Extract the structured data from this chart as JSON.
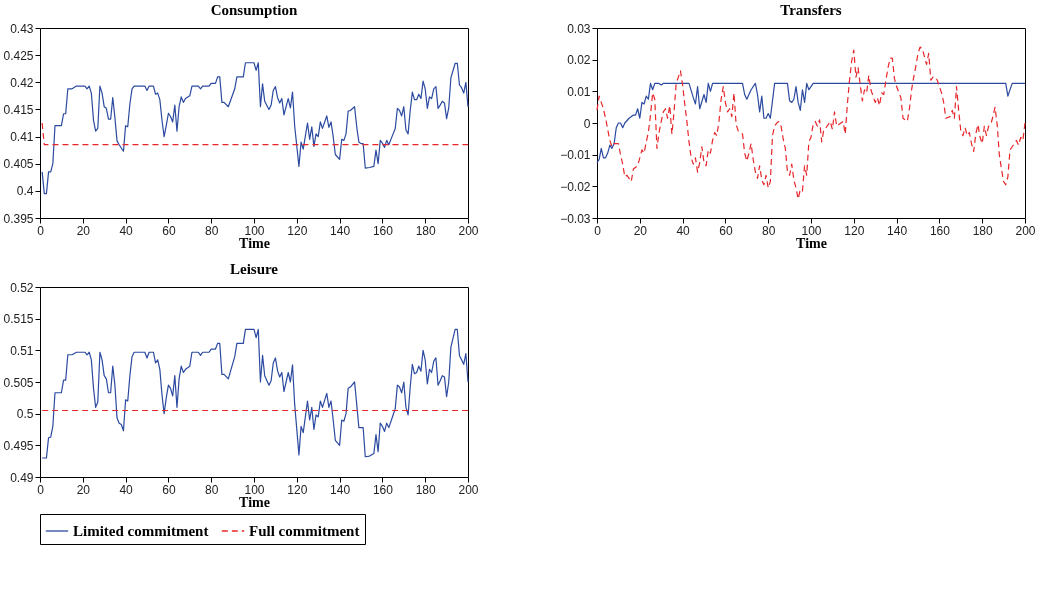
{
  "chart_data": [
    {
      "type": "line",
      "title": "Consumption",
      "xlabel": "Time",
      "xlim": [
        0,
        200
      ],
      "xticks": [
        0,
        20,
        40,
        60,
        80,
        100,
        120,
        140,
        160,
        180,
        200
      ],
      "ylim": [
        0.395,
        0.43
      ],
      "yticks": [
        0.395,
        0.4,
        0.405,
        0.41,
        0.415,
        0.42,
        0.425,
        0.43
      ],
      "grid": false,
      "legend": "bottom",
      "series": [
        {
          "name": "Limited commitment",
          "color": "#2b4aa0",
          "line_style": "solid",
          "x": [
            1,
            2,
            3,
            4,
            5,
            6,
            7,
            10,
            11,
            12,
            13,
            15,
            17,
            21,
            22,
            23,
            24,
            25,
            26,
            27,
            28,
            29,
            30,
            31,
            32,
            33,
            34,
            35,
            36,
            37,
            39,
            40,
            41,
            42,
            43,
            44,
            49,
            50,
            51,
            53,
            54,
            55,
            56,
            57,
            58,
            59,
            60,
            61,
            62,
            63,
            64,
            65,
            66,
            67,
            68,
            70,
            71,
            74,
            75,
            76,
            79,
            80,
            82,
            83,
            84,
            85,
            86,
            88,
            91,
            92,
            95,
            96,
            100,
            101,
            102,
            103,
            104,
            105,
            107,
            108,
            109,
            110,
            111,
            112,
            113,
            114,
            115,
            116,
            117,
            118,
            119,
            121,
            122,
            123,
            125,
            126,
            127,
            128,
            129,
            130,
            131,
            132,
            134,
            135,
            136,
            137,
            138,
            140,
            141,
            142,
            143,
            144,
            145,
            147,
            148,
            149,
            150,
            151,
            152,
            154,
            156,
            157,
            158,
            159,
            160,
            161,
            162,
            163,
            165,
            166,
            167,
            168,
            169,
            170,
            171,
            172,
            173,
            174,
            175,
            176,
            177,
            178,
            179,
            180,
            181,
            182,
            183,
            184,
            185,
            186,
            187,
            188,
            189,
            190,
            191,
            192,
            194,
            195,
            196,
            197,
            198,
            199,
            200
          ],
          "values": [
            0.4035,
            0.3995,
            0.3995,
            0.4035,
            0.4035,
            0.405,
            0.412,
            0.412,
            0.4142,
            0.4142,
            0.4188,
            0.4188,
            0.4193,
            0.4193,
            0.4188,
            0.4193,
            0.418,
            0.413,
            0.411,
            0.4115,
            0.4193,
            0.418,
            0.4155,
            0.4152,
            0.4132,
            0.4132,
            0.4172,
            0.4135,
            0.4092,
            0.4085,
            0.4073,
            0.412,
            0.4118,
            0.416,
            0.4188,
            0.4193,
            0.4193,
            0.4185,
            0.4193,
            0.4193,
            0.4178,
            0.418,
            0.4168,
            0.413,
            0.41,
            0.412,
            0.4143,
            0.4137,
            0.4127,
            0.4158,
            0.411,
            0.4155,
            0.4173,
            0.4163,
            0.417,
            0.4175,
            0.4193,
            0.4193,
            0.4188,
            0.4193,
            0.4193,
            0.4198,
            0.4198,
            0.421,
            0.421,
            0.4163,
            0.4163,
            0.4155,
            0.4188,
            0.421,
            0.421,
            0.4236,
            0.4236,
            0.4222,
            0.4236,
            0.4155,
            0.4197,
            0.4165,
            0.415,
            0.4158,
            0.4185,
            0.4192,
            0.4172,
            0.4162,
            0.417,
            0.414,
            0.4155,
            0.417,
            0.4153,
            0.4182,
            0.412,
            0.4045,
            0.409,
            0.4077,
            0.4125,
            0.4095,
            0.4118,
            0.4082,
            0.4105,
            0.41,
            0.4127,
            0.4115,
            0.4138,
            0.4117,
            0.4127,
            0.41,
            0.4067,
            0.4058,
            0.4095,
            0.4093,
            0.4105,
            0.4147,
            0.4148,
            0.4155,
            0.4118,
            0.409,
            0.4087,
            0.4087,
            0.4042,
            0.4043,
            0.4045,
            0.4075,
            0.405,
            0.4093,
            0.4088,
            0.408,
            0.4093,
            0.4085,
            0.4105,
            0.4115,
            0.4152,
            0.4148,
            0.4138,
            0.4155,
            0.4112,
            0.4105,
            0.4148,
            0.4182,
            0.4168,
            0.4168,
            0.4178,
            0.417,
            0.4202,
            0.4188,
            0.4152,
            0.4173,
            0.417,
            0.4188,
            0.4192,
            0.4152,
            0.4158,
            0.4165,
            0.4162,
            0.4133,
            0.4153,
            0.4208,
            0.4235,
            0.4235,
            0.4195,
            0.419,
            0.418,
            0.42,
            0.4155
          ]
        },
        {
          "name": "Full commitment",
          "color": "#e8262a",
          "line_style": "dashed",
          "x": [
            1,
            2,
            200
          ],
          "values": [
            0.4125,
            0.4085,
            0.4085
          ]
        }
      ]
    },
    {
      "type": "line",
      "title": "Transfers",
      "xlabel": "Time",
      "xlim": [
        0,
        200
      ],
      "xticks": [
        0,
        20,
        40,
        60,
        80,
        100,
        120,
        140,
        160,
        180,
        200
      ],
      "ylim": [
        -0.03,
        0.03
      ],
      "yticks": [
        -0.03,
        -0.02,
        -0.01,
        0,
        0.01,
        0.02,
        0.03
      ],
      "grid": false,
      "legend": "bottom",
      "series": [
        {
          "name": "Limited commitment",
          "color": "#2b4aa0",
          "line_style": "solid",
          "x": [
            0,
            1,
            2,
            3,
            4,
            5,
            6,
            7,
            8,
            9,
            10,
            11,
            12,
            13,
            15,
            17,
            18,
            19,
            20,
            21,
            22,
            23,
            24,
            25,
            26,
            27,
            29,
            30,
            31,
            43,
            45,
            46,
            47,
            48,
            50,
            51,
            52,
            53,
            54,
            68,
            69,
            70,
            72,
            74,
            75,
            76,
            77,
            78,
            79,
            80,
            81,
            83,
            89,
            90,
            91,
            92,
            93,
            94,
            95,
            96,
            97,
            98,
            99,
            100,
            101,
            191,
            192,
            194,
            200
          ],
          "values": [
            -0.0125,
            -0.0115,
            -0.008,
            -0.011,
            -0.011,
            -0.0095,
            -0.007,
            -0.008,
            -0.0065,
            -0.0015,
            0,
            0,
            -0.0015,
            0,
            0.0015,
            0.0025,
            0.0025,
            0.0045,
            0.0015,
            0.0065,
            0.006,
            0.0085,
            0.0075,
            0.0125,
            0.0105,
            0.0125,
            0.0125,
            0.012,
            0.0125,
            0.0125,
            0.008,
            0.006,
            0.0115,
            0.0045,
            0.009,
            0.0065,
            0.0125,
            0.01,
            0.0125,
            0.0125,
            0.009,
            0.0075,
            0.0105,
            0.0125,
            0.009,
            0.0035,
            0.0085,
            0.0015,
            0.0015,
            0.003,
            0.0015,
            0.0125,
            0.0125,
            0.007,
            0.0065,
            0.0075,
            0.0115,
            0.0065,
            0.004,
            0.0105,
            0.0065,
            0.0125,
            0.0105,
            0.0115,
            0.0125,
            0.0125,
            0.0085,
            0.0125,
            0.0125
          ]
        },
        {
          "name": "Full commitment",
          "color": "#e8262a",
          "line_style": "dashed",
          "x": [
            0,
            1,
            3,
            4,
            5,
            6,
            7,
            8,
            10,
            11,
            12,
            13,
            14,
            16,
            17,
            19,
            20,
            21,
            22,
            23,
            24,
            25,
            26,
            27,
            28,
            29,
            30,
            31,
            32,
            33,
            34,
            35,
            36,
            37,
            38,
            39,
            40,
            41,
            42,
            43,
            44,
            45,
            46,
            47,
            48,
            49,
            50,
            51,
            52,
            53,
            54,
            55,
            56,
            57,
            58,
            59,
            60,
            61,
            62,
            63,
            64,
            65,
            66,
            67,
            68,
            69,
            70,
            71,
            72,
            73,
            74,
            75,
            76,
            77,
            78,
            79,
            80,
            81,
            82,
            83,
            84,
            85,
            86,
            87,
            88,
            89,
            90,
            91,
            92,
            93,
            94,
            95,
            96,
            97,
            98,
            99,
            100,
            101,
            102,
            103,
            104,
            105,
            106,
            107,
            108,
            109,
            110,
            111,
            112,
            113,
            114,
            115,
            116,
            117,
            118,
            119,
            120,
            121,
            122,
            123,
            124,
            125,
            126,
            127,
            128,
            129,
            130,
            131,
            132,
            133,
            134,
            135,
            136,
            137,
            138,
            139,
            140,
            142,
            143,
            145,
            146,
            147,
            148,
            149,
            150,
            151,
            152,
            154,
            155,
            156,
            157,
            158,
            159,
            161,
            162,
            163,
            165,
            166,
            167,
            168,
            169,
            170,
            171,
            172,
            173,
            174,
            175,
            176,
            177,
            178,
            179,
            180,
            181,
            182,
            183,
            184,
            185,
            186,
            187,
            188,
            189,
            190,
            191,
            192,
            193,
            194,
            195,
            196,
            197,
            198,
            199,
            200
          ],
          "values": [
            0.004,
            0.0085,
            0.0045,
            0.0015,
            -0.002,
            -0.0055,
            -0.0075,
            -0.0065,
            -0.0065,
            -0.01,
            -0.013,
            -0.017,
            -0.0165,
            -0.0185,
            -0.0145,
            -0.0135,
            -0.011,
            -0.0085,
            -0.0095,
            -0.006,
            -0.003,
            0.0025,
            0.0095,
            0.0075,
            -0.008,
            -0.003,
            0.0005,
            0.0035,
            0.0045,
            0.0015,
            0.0055,
            -0.0035,
            0.0035,
            0.0125,
            0.0145,
            0.0165,
            0.012,
            0.006,
            0.0005,
            -0.006,
            -0.011,
            -0.013,
            -0.011,
            -0.0155,
            -0.0125,
            -0.0075,
            -0.0125,
            -0.0135,
            -0.0085,
            -0.0095,
            -0.0055,
            -0.003,
            -0.004,
            0.0005,
            0.0075,
            0.0115,
            0.0065,
            0.0035,
            0.0045,
            0.002,
            0.0095,
            -0.0005,
            -0.0025,
            -0.003,
            -0.0035,
            -0.0095,
            -0.012,
            -0.0095,
            -0.0065,
            -0.0115,
            -0.0155,
            -0.0175,
            -0.0135,
            -0.018,
            -0.0195,
            -0.0165,
            -0.0205,
            -0.0185,
            -0.004,
            -0.001,
            0,
            0.0005,
            -0.001,
            -0.005,
            -0.008,
            -0.0155,
            -0.0165,
            -0.013,
            -0.018,
            -0.0205,
            -0.024,
            -0.021,
            -0.0215,
            -0.0135,
            -0.0165,
            -0.006,
            -0.0045,
            -0.0005,
            0.0005,
            -0.001,
            0.001,
            -0.006,
            -0.002,
            -0.0015,
            -0.0005,
            0.0005,
            -0.002,
            0.0035,
            -0.001,
            -0.0005,
            0,
            0.0005,
            -0.0035,
            0.006,
            0.0135,
            0.0195,
            0.023,
            0.0145,
            0.0175,
            0.012,
            0.007,
            0.0105,
            0.0095,
            0.015,
            0.0105,
            0.0085,
            0.0065,
            0.008,
            0.0055,
            0.0095,
            0.009,
            0.0135,
            0.0175,
            0.0205,
            0.0205,
            0.014,
            0.0115,
            0.008,
            0.0015,
            0.0005,
            0.0045,
            0.0105,
            0.0145,
            0.018,
            0.022,
            0.024,
            0.0235,
            0.0185,
            0.022,
            0.0135,
            0.0145,
            0.0145,
            0.0135,
            0.0095,
            0.0065,
            0.0015,
            0.002,
            0.004,
            0.0015,
            0.0115,
            0.004,
            -0.0025,
            -0.004,
            -0.0015,
            -0.004,
            -0.003,
            -0.0065,
            -0.009,
            -0.0035,
            -0.0005,
            -0.0045,
            -0.0065,
            -0.001,
            -0.004,
            -0.001,
            -0.0005,
            0.002,
            0.005,
            -0.0005,
            -0.01,
            -0.0145,
            -0.0185,
            -0.0195,
            -0.017,
            -0.0085,
            -0.0075,
            -0.0065,
            -0.0055,
            -0.007,
            -0.0045,
            -0.0055,
            0
          ]
        }
      ]
    },
    {
      "type": "line",
      "title": "Leisure",
      "xlabel": "Time",
      "xlim": [
        0,
        200
      ],
      "xticks": [
        0,
        20,
        40,
        60,
        80,
        100,
        120,
        140,
        160,
        180,
        200
      ],
      "ylim": [
        0.49,
        0.52
      ],
      "yticks": [
        0.49,
        0.495,
        0.5,
        0.505,
        0.51,
        0.515,
        0.52
      ],
      "grid": false,
      "legend": "bottom",
      "series": [
        {
          "name": "Limited commitment",
          "color": "#2b4aa0",
          "line_style": "solid",
          "x": [
            1,
            3,
            4,
            5,
            6,
            7,
            10,
            11,
            12,
            13,
            15,
            17,
            21,
            22,
            23,
            24,
            25,
            26,
            27,
            28,
            29,
            30,
            31,
            32,
            33,
            34,
            35,
            36,
            37,
            38,
            39,
            40,
            41,
            42,
            43,
            44,
            49,
            50,
            51,
            53,
            54,
            55,
            56,
            57,
            58,
            59,
            60,
            61,
            62,
            63,
            64,
            65,
            66,
            67,
            68,
            70,
            71,
            74,
            75,
            76,
            79,
            80,
            82,
            83,
            84,
            85,
            86,
            88,
            91,
            92,
            95,
            96,
            100,
            101,
            102,
            103,
            104,
            105,
            107,
            108,
            109,
            110,
            111,
            112,
            113,
            114,
            115,
            116,
            117,
            118,
            119,
            121,
            122,
            123,
            125,
            126,
            127,
            128,
            129,
            130,
            131,
            132,
            134,
            135,
            136,
            137,
            138,
            140,
            141,
            142,
            143,
            144,
            145,
            147,
            148,
            149,
            151,
            152,
            154,
            156,
            157,
            158,
            159,
            160,
            161,
            162,
            163,
            165,
            166,
            167,
            168,
            169,
            170,
            171,
            172,
            173,
            174,
            175,
            176,
            177,
            178,
            179,
            180,
            181,
            182,
            183,
            184,
            185,
            186,
            187,
            188,
            189,
            190,
            191,
            192,
            194,
            195,
            196,
            197,
            198,
            199,
            200
          ],
          "values": [
            0.493,
            0.493,
            0.4962,
            0.4963,
            0.498,
            0.5033,
            0.5033,
            0.5053,
            0.5053,
            0.5093,
            0.5093,
            0.5097,
            0.5097,
            0.5093,
            0.5097,
            0.5085,
            0.504,
            0.501,
            0.5018,
            0.5097,
            0.5085,
            0.506,
            0.5055,
            0.5033,
            0.5033,
            0.5075,
            0.5045,
            0.4993,
            0.4985,
            0.4983,
            0.4973,
            0.5022,
            0.502,
            0.506,
            0.509,
            0.5097,
            0.5097,
            0.5088,
            0.5097,
            0.5097,
            0.508,
            0.5085,
            0.507,
            0.503,
            0.5,
            0.5025,
            0.5045,
            0.504,
            0.5028,
            0.506,
            0.501,
            0.5055,
            0.5075,
            0.5065,
            0.507,
            0.5075,
            0.5097,
            0.5097,
            0.5092,
            0.5097,
            0.5097,
            0.5102,
            0.5102,
            0.5111,
            0.5111,
            0.5062,
            0.5062,
            0.5055,
            0.509,
            0.5111,
            0.5111,
            0.5133,
            0.5133,
            0.512,
            0.5133,
            0.505,
            0.5092,
            0.506,
            0.5045,
            0.5052,
            0.508,
            0.5088,
            0.5068,
            0.5058,
            0.5065,
            0.5035,
            0.505,
            0.5065,
            0.505,
            0.5077,
            0.5015,
            0.4935,
            0.498,
            0.497,
            0.502,
            0.499,
            0.501,
            0.4975,
            0.4998,
            0.4995,
            0.502,
            0.501,
            0.5032,
            0.501,
            0.502,
            0.499,
            0.4958,
            0.495,
            0.499,
            0.4988,
            0.5,
            0.504,
            0.5042,
            0.505,
            0.5015,
            0.4978,
            0.4978,
            0.4932,
            0.4933,
            0.4937,
            0.4967,
            0.494,
            0.4985,
            0.498,
            0.4972,
            0.4985,
            0.4978,
            0.4998,
            0.5008,
            0.5045,
            0.5042,
            0.5033,
            0.505,
            0.501,
            0.4998,
            0.5042,
            0.5078,
            0.5063,
            0.5065,
            0.5075,
            0.5067,
            0.51,
            0.5085,
            0.5047,
            0.507,
            0.5065,
            0.5083,
            0.5088,
            0.5045,
            0.5052,
            0.506,
            0.5058,
            0.5027,
            0.505,
            0.5105,
            0.5133,
            0.5133,
            0.5092,
            0.5085,
            0.5078,
            0.5095,
            0.505
          ]
        },
        {
          "name": "Full commitment",
          "color": "#e8262a",
          "line_style": "dashed",
          "x": [
            1,
            200
          ],
          "values": [
            0.5005,
            0.5005
          ]
        }
      ]
    }
  ]
}
